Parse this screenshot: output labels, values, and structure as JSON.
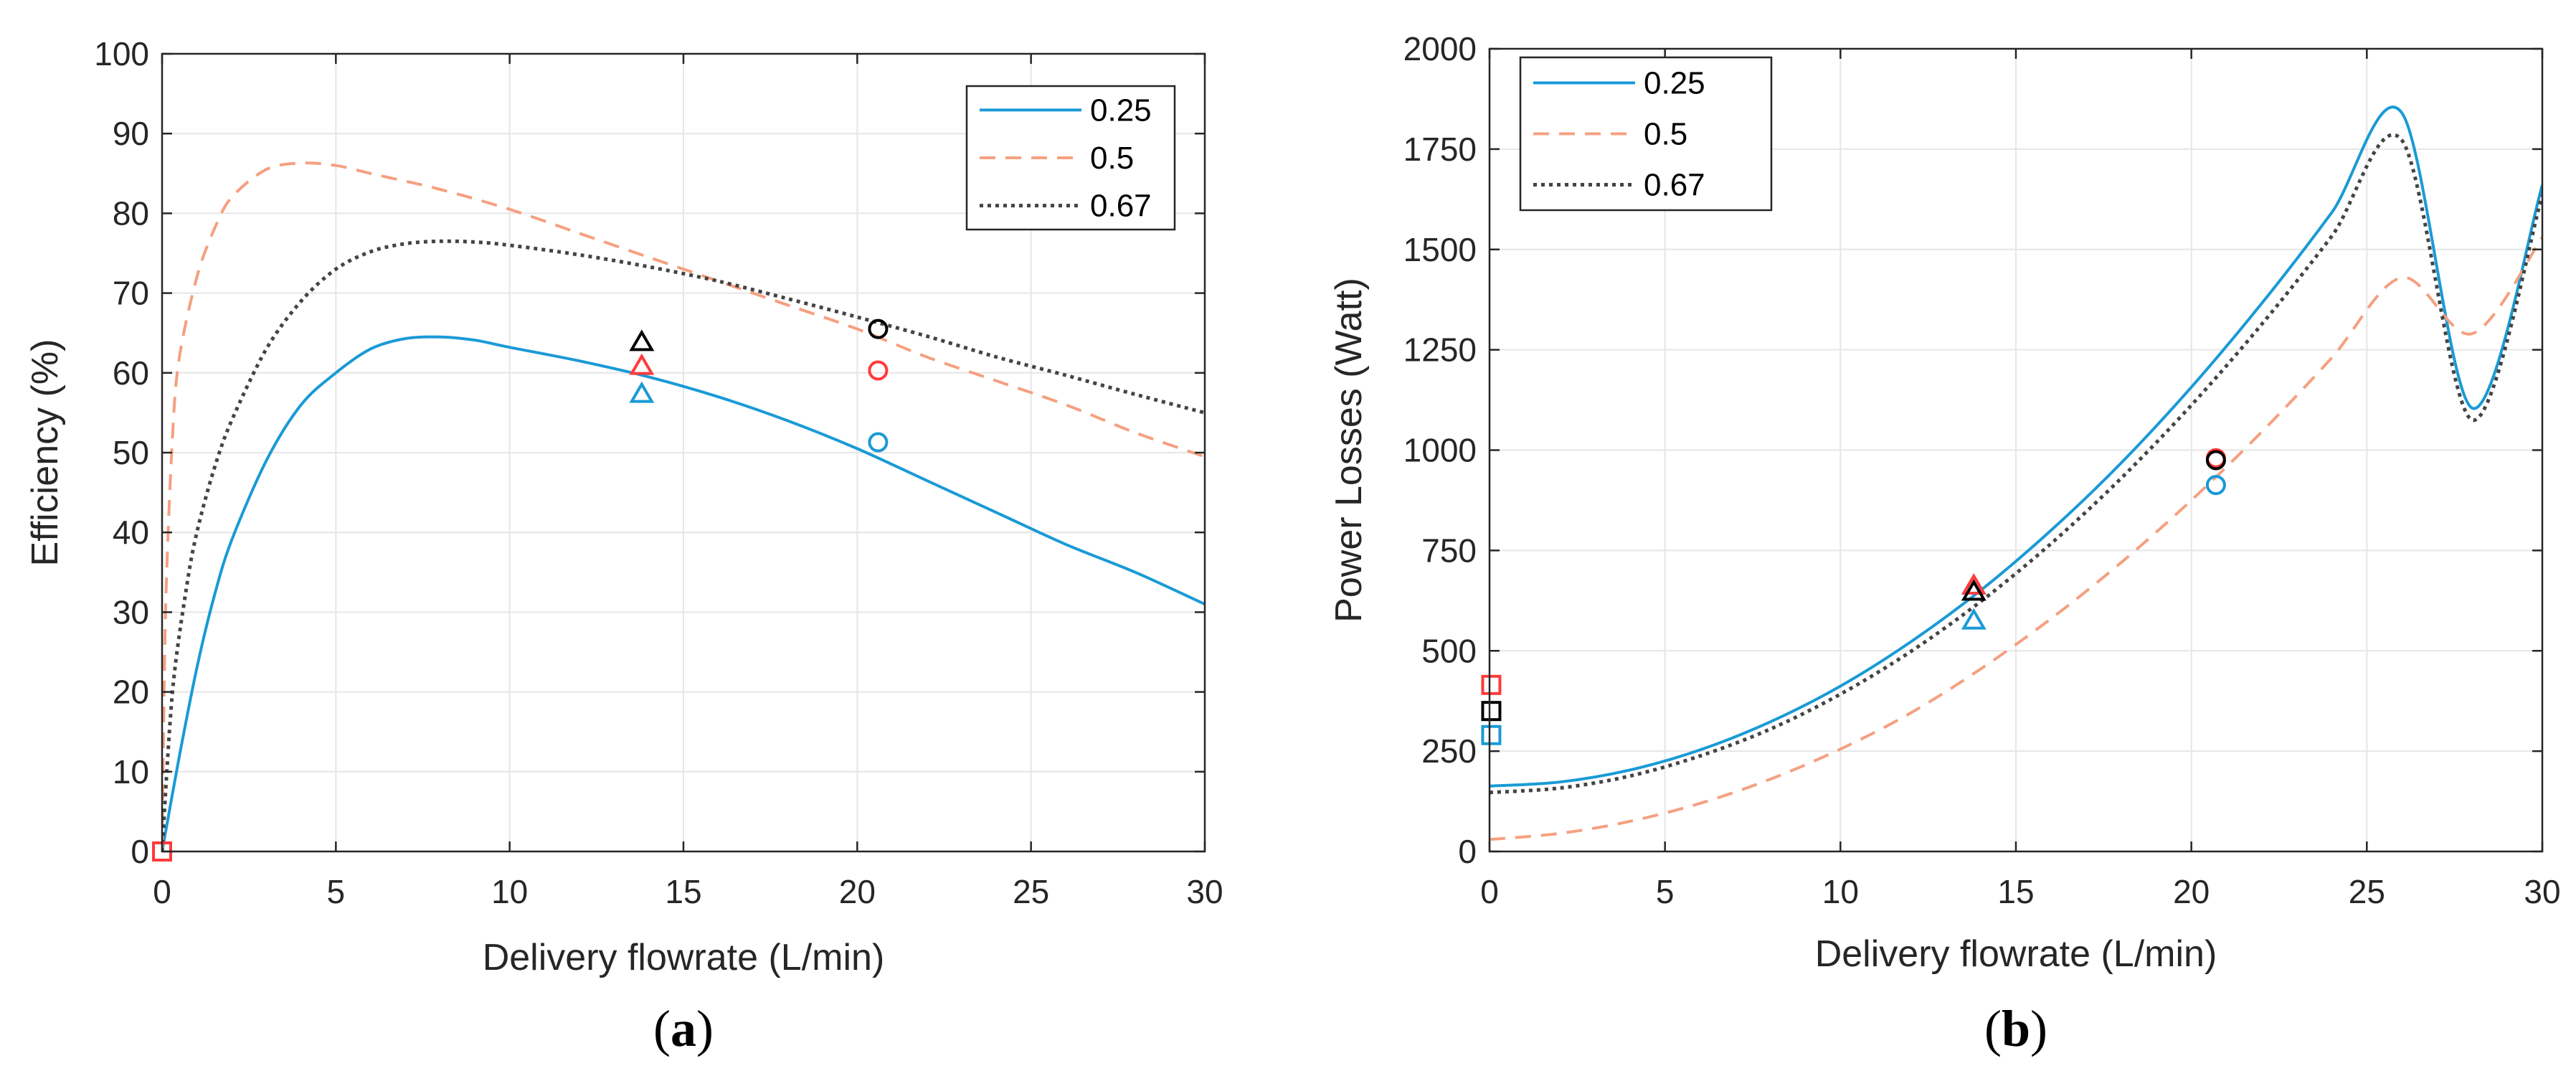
{
  "chart_data": [
    {
      "type": "line",
      "panel_label": "a",
      "xlabel": "Delivery flowrate (L/min)",
      "ylabel": "Efficiency (%)",
      "xlim": [
        0,
        30
      ],
      "ylim": [
        0,
        100
      ],
      "xticks": [
        0,
        5,
        10,
        15,
        20,
        25,
        30
      ],
      "yticks": [
        0,
        10,
        20,
        30,
        40,
        50,
        60,
        70,
        80,
        90,
        100
      ],
      "grid": true,
      "legend_position": "top-right",
      "series": [
        {
          "name": "0.25",
          "color": "#1a9ad6",
          "dash": "solid",
          "x": [
            0,
            0.5,
            1,
            1.5,
            2,
            3,
            4,
            5,
            6,
            7,
            8,
            9,
            10,
            12,
            14,
            16,
            18,
            20,
            22,
            24,
            26,
            28,
            30
          ],
          "y": [
            0,
            12,
            23,
            32,
            39,
            49,
            56,
            60,
            63,
            64.3,
            64.5,
            64.1,
            63.2,
            61.5,
            59.5,
            57,
            54,
            50.5,
            46.5,
            42.5,
            38.5,
            35,
            31
          ]
        },
        {
          "name": "0.5",
          "color": "#f5a080",
          "dash": "dashed",
          "x": [
            0,
            0.1,
            0.3,
            0.5,
            1,
            1.5,
            2,
            3,
            4,
            5,
            6,
            8,
            10,
            12,
            14,
            16,
            18,
            20,
            22,
            24,
            26,
            28,
            30
          ],
          "y": [
            0,
            30,
            52,
            62,
            72,
            78,
            82,
            85.5,
            86.3,
            86,
            85,
            83,
            80.5,
            77.5,
            74.5,
            71.5,
            68.5,
            65.5,
            62,
            59,
            56,
            52.5,
            49.5
          ]
        },
        {
          "name": "0.67",
          "color": "#444444",
          "dash": "dotted",
          "x": [
            0,
            0.3,
            0.7,
            1,
            1.5,
            2,
            3,
            4,
            5,
            6,
            7,
            8,
            9,
            10,
            12,
            14,
            16,
            18,
            20,
            22,
            24,
            26,
            28,
            30
          ],
          "y": [
            0,
            20,
            33,
            40,
            48,
            54,
            63,
            69,
            73,
            75.2,
            76.2,
            76.5,
            76.4,
            76,
            74.8,
            73.3,
            71.5,
            69.3,
            67,
            64.6,
            62,
            59.7,
            57.3,
            55
          ]
        }
      ],
      "markers": [
        {
          "shape": "triangle",
          "color": "#000000",
          "x": 13.8,
          "y": 64
        },
        {
          "shape": "triangle",
          "color": "#ff3b3b",
          "x": 13.8,
          "y": 61
        },
        {
          "shape": "triangle",
          "color": "#1a9ad6",
          "x": 13.8,
          "y": 57.5
        },
        {
          "shape": "circle",
          "color": "#000000",
          "x": 20.6,
          "y": 65.5
        },
        {
          "shape": "circle",
          "color": "#ff3b3b",
          "x": 20.6,
          "y": 60.3
        },
        {
          "shape": "circle",
          "color": "#1a9ad6",
          "x": 20.6,
          "y": 51.3
        },
        {
          "shape": "square",
          "color": "#1a9ad6",
          "x": 0,
          "y": 0
        },
        {
          "shape": "square",
          "color": "#000000",
          "x": 0,
          "y": 0
        },
        {
          "shape": "square",
          "color": "#ff3b3b",
          "x": 0,
          "y": 0
        }
      ]
    },
    {
      "type": "line",
      "panel_label": "b",
      "xlabel": "Delivery flowrate (L/min)",
      "ylabel": "Power Losses (Watt)",
      "xlim": [
        0,
        30
      ],
      "ylim": [
        0,
        2000
      ],
      "xticks": [
        0,
        5,
        10,
        15,
        20,
        25,
        30
      ],
      "yticks": [
        0,
        250,
        500,
        750,
        1000,
        1250,
        1500,
        1750,
        2000
      ],
      "grid": true,
      "legend_position": "top-left",
      "series": [
        {
          "name": "0.25",
          "color": "#1a9ad6",
          "dash": "solid",
          "x": [
            0,
            2,
            4,
            6,
            8,
            10,
            12,
            14,
            16,
            18,
            20,
            22,
            24,
            26,
            28,
            30
          ],
          "y": [
            163,
            173,
            203,
            253,
            323,
            412,
            522,
            651,
            800,
            968,
            1157,
            1365,
            1592,
            1840,
            1105,
            1660
          ]
        },
        {
          "name": "0.5",
          "color": "#f5a080",
          "dash": "dashed",
          "x": [
            0,
            2,
            4,
            6,
            8,
            10,
            12,
            14,
            16,
            18,
            20,
            22,
            24,
            26,
            28,
            30
          ],
          "y": [
            30,
            45,
            75,
            120,
            180,
            255,
            345,
            455,
            580,
            720,
            875,
            1045,
            1230,
            1430,
            1290,
            1530
          ]
        },
        {
          "name": "0.67",
          "color": "#444444",
          "dash": "dotted",
          "x": [
            0,
            2,
            4,
            6,
            8,
            10,
            12,
            14,
            16,
            18,
            20,
            22,
            24,
            26,
            28,
            30
          ],
          "y": [
            147,
            158,
            188,
            238,
            305,
            392,
            498,
            623,
            767,
            930,
            1112,
            1313,
            1533,
            1772,
            1075,
            1635
          ]
        }
      ],
      "markers": [
        {
          "shape": "triangle",
          "color": "#ff3b3b",
          "x": 13.8,
          "y": 665
        },
        {
          "shape": "triangle",
          "color": "#000000",
          "x": 13.8,
          "y": 650
        },
        {
          "shape": "triangle",
          "color": "#1a9ad6",
          "x": 13.8,
          "y": 578
        },
        {
          "shape": "circle",
          "color": "#ff3b3b",
          "x": 20.7,
          "y": 980
        },
        {
          "shape": "circle",
          "color": "#000000",
          "x": 20.7,
          "y": 975
        },
        {
          "shape": "circle",
          "color": "#1a9ad6",
          "x": 20.7,
          "y": 913
        },
        {
          "shape": "square",
          "color": "#ff3b3b",
          "x": 0.05,
          "y": 415
        },
        {
          "shape": "square",
          "color": "#000000",
          "x": 0.05,
          "y": 350
        },
        {
          "shape": "square",
          "color": "#1a9ad6",
          "x": 0.05,
          "y": 290
        }
      ]
    }
  ]
}
